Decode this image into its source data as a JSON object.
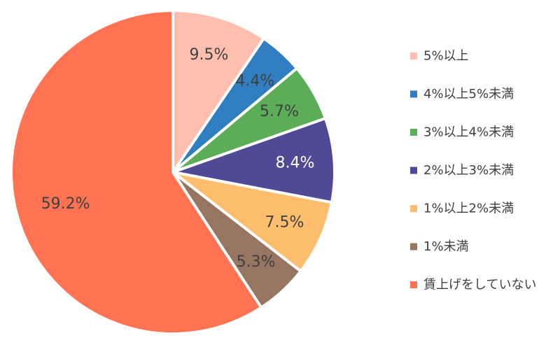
{
  "chart_data": {
    "type": "pie",
    "title": "",
    "legend_position": "right",
    "slices": [
      {
        "label": "5%以上",
        "value": 9.5,
        "display": "9.5%",
        "color": "#FFBFAE",
        "label_color": "#404040"
      },
      {
        "label": "4%以上5%未満",
        "value": 4.4,
        "display": "4.4%",
        "color": "#2E7EC1",
        "label_color": "#404040"
      },
      {
        "label": "3%以上4%未満",
        "value": 5.7,
        "display": "5.7%",
        "color": "#5CAD58",
        "label_color": "#404040"
      },
      {
        "label": "2%以上3%未満",
        "value": 8.4,
        "display": "8.4%",
        "color": "#4F4A96",
        "label_color": "#FFFFFF"
      },
      {
        "label": "1%以上2%未満",
        "value": 7.5,
        "display": "7.5%",
        "color": "#FFBD6E",
        "label_color": "#404040"
      },
      {
        "label": "1%未満",
        "value": 5.3,
        "display": "5.3%",
        "color": "#977661",
        "label_color": "#404040"
      },
      {
        "label": "賃上げをしていない",
        "value": 59.2,
        "display": "59.2%",
        "color": "#FF7252",
        "label_color": "#404040"
      }
    ]
  }
}
